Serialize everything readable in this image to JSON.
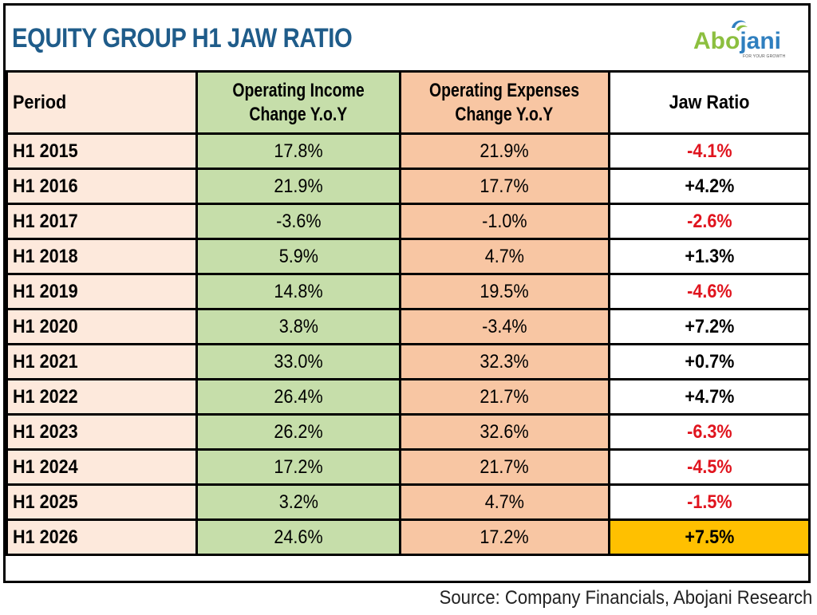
{
  "title": "EQUITY GROUP H1 JAW RATIO",
  "logo": {
    "text_a": "Abo",
    "text_b": "jani",
    "tagline": "FOR YOUR GROWTH"
  },
  "source": "Source: Company Financials, Abojani Research",
  "colors": {
    "title": "#1f5c8a",
    "negative": "#e0141e",
    "highlight": "#ffc000",
    "income_bg": "#c6deaa",
    "expense_bg": "#f8c6a3",
    "period_bg": "#fde9dc"
  },
  "chart_data": {
    "type": "table",
    "columns": [
      "Period",
      "Operating Income Change Y.o.Y",
      "Operating Expenses Change Y.o.Y",
      "Jaw Ratio"
    ],
    "header_lines": {
      "period": "Period",
      "income_1": "Operating Income",
      "income_2": "Change Y.o.Y",
      "expense_1": "Operating Expenses",
      "expense_2": "Change Y.o.Y",
      "jaw": "Jaw Ratio"
    },
    "rows": [
      {
        "period": "H1 2015",
        "income": "17.8%",
        "expense": "21.9%",
        "jaw": "-4.1%"
      },
      {
        "period": "H1 2016",
        "income": "21.9%",
        "expense": "17.7%",
        "jaw": "+4.2%"
      },
      {
        "period": "H1 2017",
        "income": "-3.6%",
        "expense": "-1.0%",
        "jaw": "-2.6%"
      },
      {
        "period": "H1 2018",
        "income": "5.9%",
        "expense": "4.7%",
        "jaw": "+1.3%"
      },
      {
        "period": "H1 2019",
        "income": "14.8%",
        "expense": "19.5%",
        "jaw": "-4.6%"
      },
      {
        "period": "H1 2020",
        "income": "3.8%",
        "expense": "-3.4%",
        "jaw": "+7.2%"
      },
      {
        "period": "H1 2021",
        "income": "33.0%",
        "expense": "32.3%",
        "jaw": "+0.7%"
      },
      {
        "period": "H1 2022",
        "income": "26.4%",
        "expense": "21.7%",
        "jaw": "+4.7%"
      },
      {
        "period": "H1 2023",
        "income": "26.2%",
        "expense": "32.6%",
        "jaw": "-6.3%"
      },
      {
        "period": "H1 2024",
        "income": "17.2%",
        "expense": "21.7%",
        "jaw": "-4.5%"
      },
      {
        "period": "H1 2025",
        "income": "3.2%",
        "expense": "4.7%",
        "jaw": "-1.5%"
      },
      {
        "period": "H1 2026",
        "income": "24.6%",
        "expense": "17.2%",
        "jaw": "+7.5%"
      }
    ],
    "highlighted_row": "H1 2026"
  }
}
